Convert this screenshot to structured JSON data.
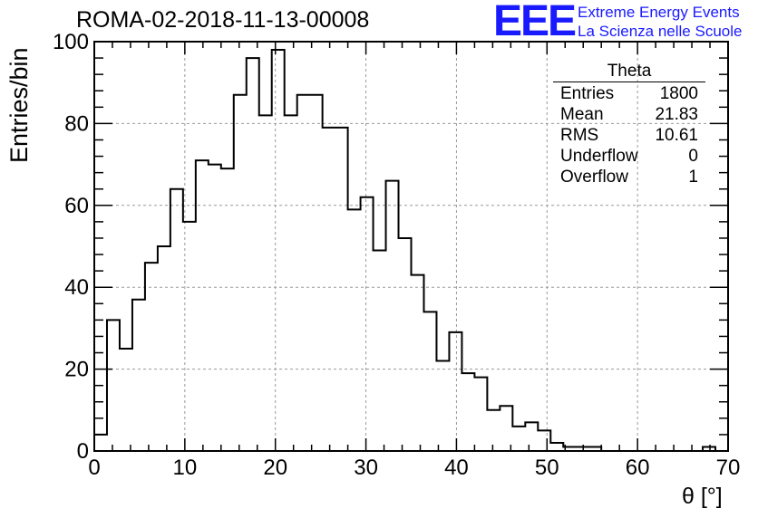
{
  "header": {
    "title": "ROMA-02-2018-11-13-00008",
    "logo_text": "EEE",
    "logo_line1": "Extreme Energy Events",
    "logo_line2": "La Scienza nelle Scuole",
    "accent_color": "#1a1aff"
  },
  "stats_box": {
    "title": "Theta",
    "rows": [
      {
        "label": "Entries",
        "value": "1800"
      },
      {
        "label": "Mean",
        "value": "21.83"
      },
      {
        "label": "RMS",
        "value": "10.61"
      },
      {
        "label": "Underflow",
        "value": "0"
      },
      {
        "label": "Overflow",
        "value": "1"
      }
    ]
  },
  "chart_data": {
    "type": "histogram",
    "xlabel": "θ [°]",
    "ylabel": "Entries/bin",
    "xlim": [
      0,
      70
    ],
    "ylim": [
      0,
      100
    ],
    "grid": true,
    "bin_width": 1.4,
    "x_ticks": [
      0,
      10,
      20,
      30,
      40,
      50,
      60,
      70
    ],
    "y_ticks": [
      0,
      20,
      40,
      60,
      80,
      100
    ],
    "values": [
      4,
      32,
      25,
      37,
      46,
      50,
      64,
      56,
      71,
      70,
      69,
      87,
      96,
      82,
      98,
      82,
      87,
      87,
      79,
      79,
      59,
      62,
      49,
      66,
      52,
      43,
      34,
      22,
      29,
      19,
      18,
      10,
      11,
      6,
      7,
      5,
      2,
      1,
      1,
      1,
      0,
      0,
      0,
      0,
      0,
      0,
      0,
      0,
      1,
      0
    ]
  }
}
